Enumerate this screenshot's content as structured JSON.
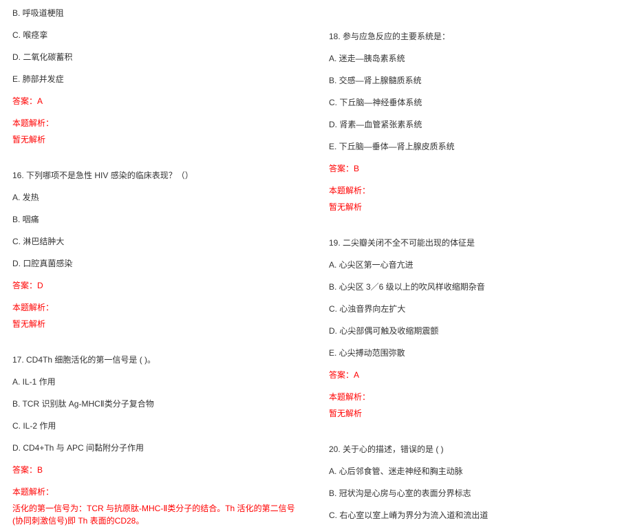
{
  "colors": {
    "text": "#333333",
    "highlight": "#ff0000",
    "background": "#ffffff"
  },
  "typography": {
    "font_family": "SimSun",
    "font_size_pt": 9,
    "line_spacing": 1.5
  },
  "left": {
    "q15_opts": {
      "B": "B. 呼吸道梗阻",
      "C": "C. 喉痉挛",
      "D": "D. 二氧化碳蓄积",
      "E": "E. 肺部并发症"
    },
    "q15_answer": "答案：A",
    "q15_explain_label": "本题解析：",
    "q15_explain_text": "暂无解析",
    "q16_stem": "16. 下列哪项不是急性 HIV 感染的临床表现？（）",
    "q16_opts": {
      "A": "A. 发热",
      "B": "B. 咽痛",
      "C": "C. 淋巴结肿大",
      "D": "D. 口腔真菌感染"
    },
    "q16_answer": "答案：D",
    "q16_explain_label": "本题解析：",
    "q16_explain_text": "暂无解析",
    "q17_stem": "17. CD4Th 细胞活化的第一信号是 ( )。",
    "q17_opts": {
      "A": "A. IL-1 作用",
      "B": "B. TCR 识别肽 Ag-MHCⅡ类分子复合物",
      "C": "C. IL-2 作用",
      "D": "D. CD4+Th 与 APC 间黏附分子作用"
    },
    "q17_answer": "答案：B",
    "q17_explain_label": "本题解析：",
    "q17_explain_text": "活化的第一信号为：TCR 与抗原肽-MHC-Ⅱ类分子的结合。Th 活化的第二信号(协同刺激信号)即 Th 表面的CD28。"
  },
  "right": {
    "q18_stem": "18. 参与应急反应的主要系统是：",
    "q18_opts": {
      "A": "A. 迷走—胰岛素系统",
      "B": "B. 交感—肾上腺髓质系统",
      "C": "C. 下丘脑—神经垂体系统",
      "D": "D. 肾素—血管紧张素系统",
      "E": "E. 下丘脑—垂体—肾上腺皮质系统"
    },
    "q18_answer": "答案：B",
    "q18_explain_label": "本题解析：",
    "q18_explain_text": "暂无解析",
    "q19_stem": "19. 二尖瓣关闭不全不可能出现的体征是",
    "q19_opts": {
      "A": "A. 心尖区第一心音亢进",
      "B": "B. 心尖区 3／6 级以上的吹风样收缩期杂音",
      "C": "C. 心浊音界向左扩大",
      "D": "D. 心尖部偶可触及收缩期震颤",
      "E": "E. 心尖搏动范围弥散"
    },
    "q19_answer": "答案：A",
    "q19_explain_label": "本题解析：",
    "q19_explain_text": "暂无解析",
    "q20_stem": "20. 关于心的描述，错误的是 ( )",
    "q20_opts": {
      "A": "A. 心后邻食管、迷走神经和胸主动脉",
      "B": "B. 冠状沟是心房与心室的表面分界标志",
      "C": "C. 右心室以室上嵴为界分为流入道和流出道"
    }
  }
}
